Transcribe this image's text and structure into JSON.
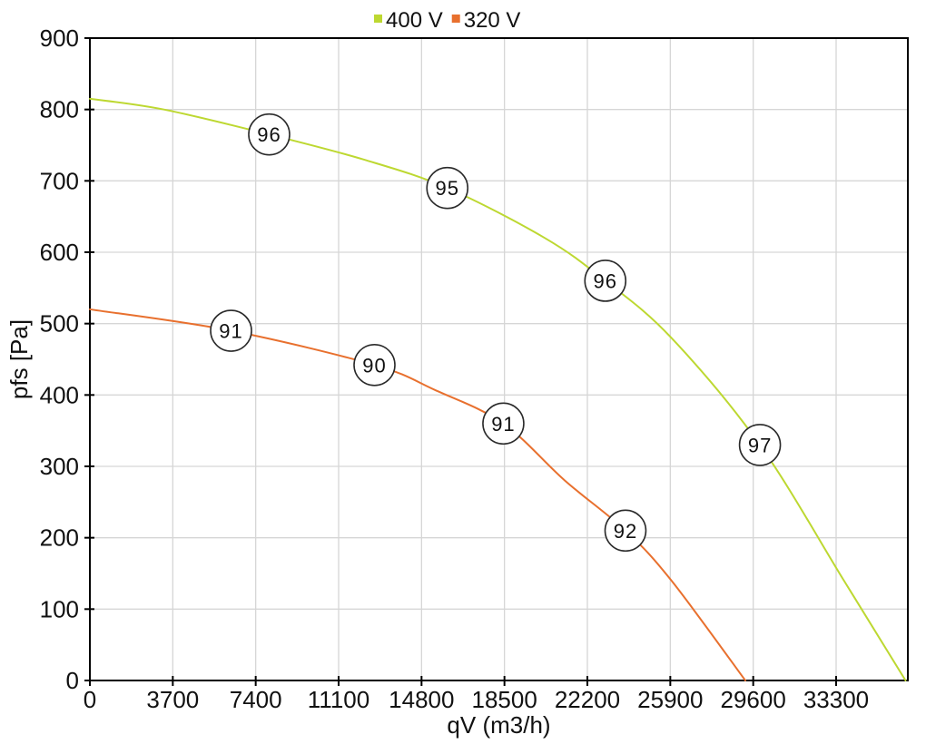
{
  "chart_data": {
    "type": "line",
    "title": "",
    "xlabel": "qV (m3/h)",
    "ylabel": "pfs [Pa]",
    "xlim": [
      0,
      36500
    ],
    "ylim": [
      0,
      900
    ],
    "x_ticks": [
      "0",
      "3700",
      "7400",
      "11100",
      "14800",
      "18500",
      "22200",
      "25900",
      "29600",
      "33300"
    ],
    "x_tick_values": [
      0,
      3700,
      7400,
      11100,
      14800,
      18500,
      22200,
      25900,
      29600,
      33300
    ],
    "y_ticks": [
      "0",
      "100",
      "200",
      "300",
      "400",
      "500",
      "600",
      "700",
      "800",
      "900"
    ],
    "y_tick_values": [
      0,
      100,
      200,
      300,
      400,
      500,
      600,
      700,
      800,
      900
    ],
    "grid": true,
    "legend_position": "top-center",
    "series": [
      {
        "name": "400 V",
        "color": "#bdd831",
        "points": [
          [
            0,
            815
          ],
          [
            3300,
            800
          ],
          [
            8000,
            765
          ],
          [
            12200,
            730
          ],
          [
            15950,
            690
          ],
          [
            20300,
            620
          ],
          [
            23000,
            560
          ],
          [
            25950,
            480
          ],
          [
            29900,
            330
          ],
          [
            33650,
            140
          ],
          [
            36400,
            0
          ]
        ],
        "point_labels": [
          {
            "value": "96",
            "x": 8000,
            "y": 765
          },
          {
            "value": "95",
            "x": 15950,
            "y": 690
          },
          {
            "value": "96",
            "x": 23000,
            "y": 560
          },
          {
            "value": "97",
            "x": 29900,
            "y": 330
          }
        ]
      },
      {
        "name": "320 V",
        "color": "#e8702e",
        "points": [
          [
            0,
            520
          ],
          [
            6300,
            490
          ],
          [
            12700,
            442
          ],
          [
            15400,
            407
          ],
          [
            18450,
            360
          ],
          [
            21200,
            280
          ],
          [
            23900,
            210
          ],
          [
            25950,
            140
          ],
          [
            29250,
            0
          ]
        ],
        "point_labels": [
          {
            "value": "91",
            "x": 6300,
            "y": 490
          },
          {
            "value": "90",
            "x": 12700,
            "y": 442
          },
          {
            "value": "91",
            "x": 18450,
            "y": 360
          },
          {
            "value": "92",
            "x": 23900,
            "y": 210
          }
        ]
      }
    ],
    "colors": {
      "grid": "#d6d6d6",
      "axis": "#000000",
      "text": "#111111",
      "marker_fill": "#ffffff",
      "marker_stroke": "#2a2a2a",
      "background": "#ffffff"
    }
  }
}
